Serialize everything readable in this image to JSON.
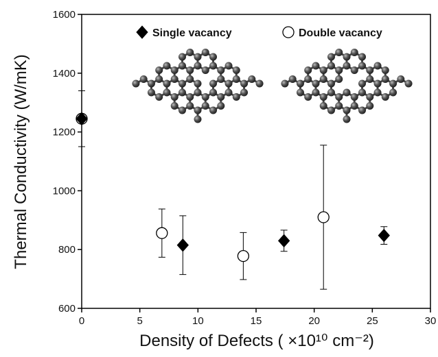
{
  "chart_data": {
    "type": "scatter",
    "x_label": "Density of Defects ( ×10¹⁰ cm⁻²)",
    "y_label": "Thermal Conductivity (W/mK)",
    "xlim": [
      0,
      30
    ],
    "ylim": [
      600,
      1600
    ],
    "xticks": [
      0,
      5,
      10,
      15,
      20,
      25,
      30
    ],
    "yticks": [
      600,
      800,
      1000,
      1200,
      1400,
      1600
    ],
    "series": [
      {
        "name": "Single vacancy",
        "marker": "diamond",
        "color": "#000000",
        "x": [
          0,
          8.7,
          17.4,
          26
        ],
        "values": [
          1245,
          815,
          830,
          848
        ],
        "errors": [
          95,
          100,
          36,
          30
        ]
      },
      {
        "name": "Double vacancy",
        "marker": "circle",
        "color": "#ffffff",
        "x": [
          0,
          6.9,
          13.9,
          20.8
        ],
        "values": [
          1245,
          856,
          778,
          910
        ],
        "errors": [
          95,
          82,
          80,
          245
        ]
      }
    ]
  }
}
